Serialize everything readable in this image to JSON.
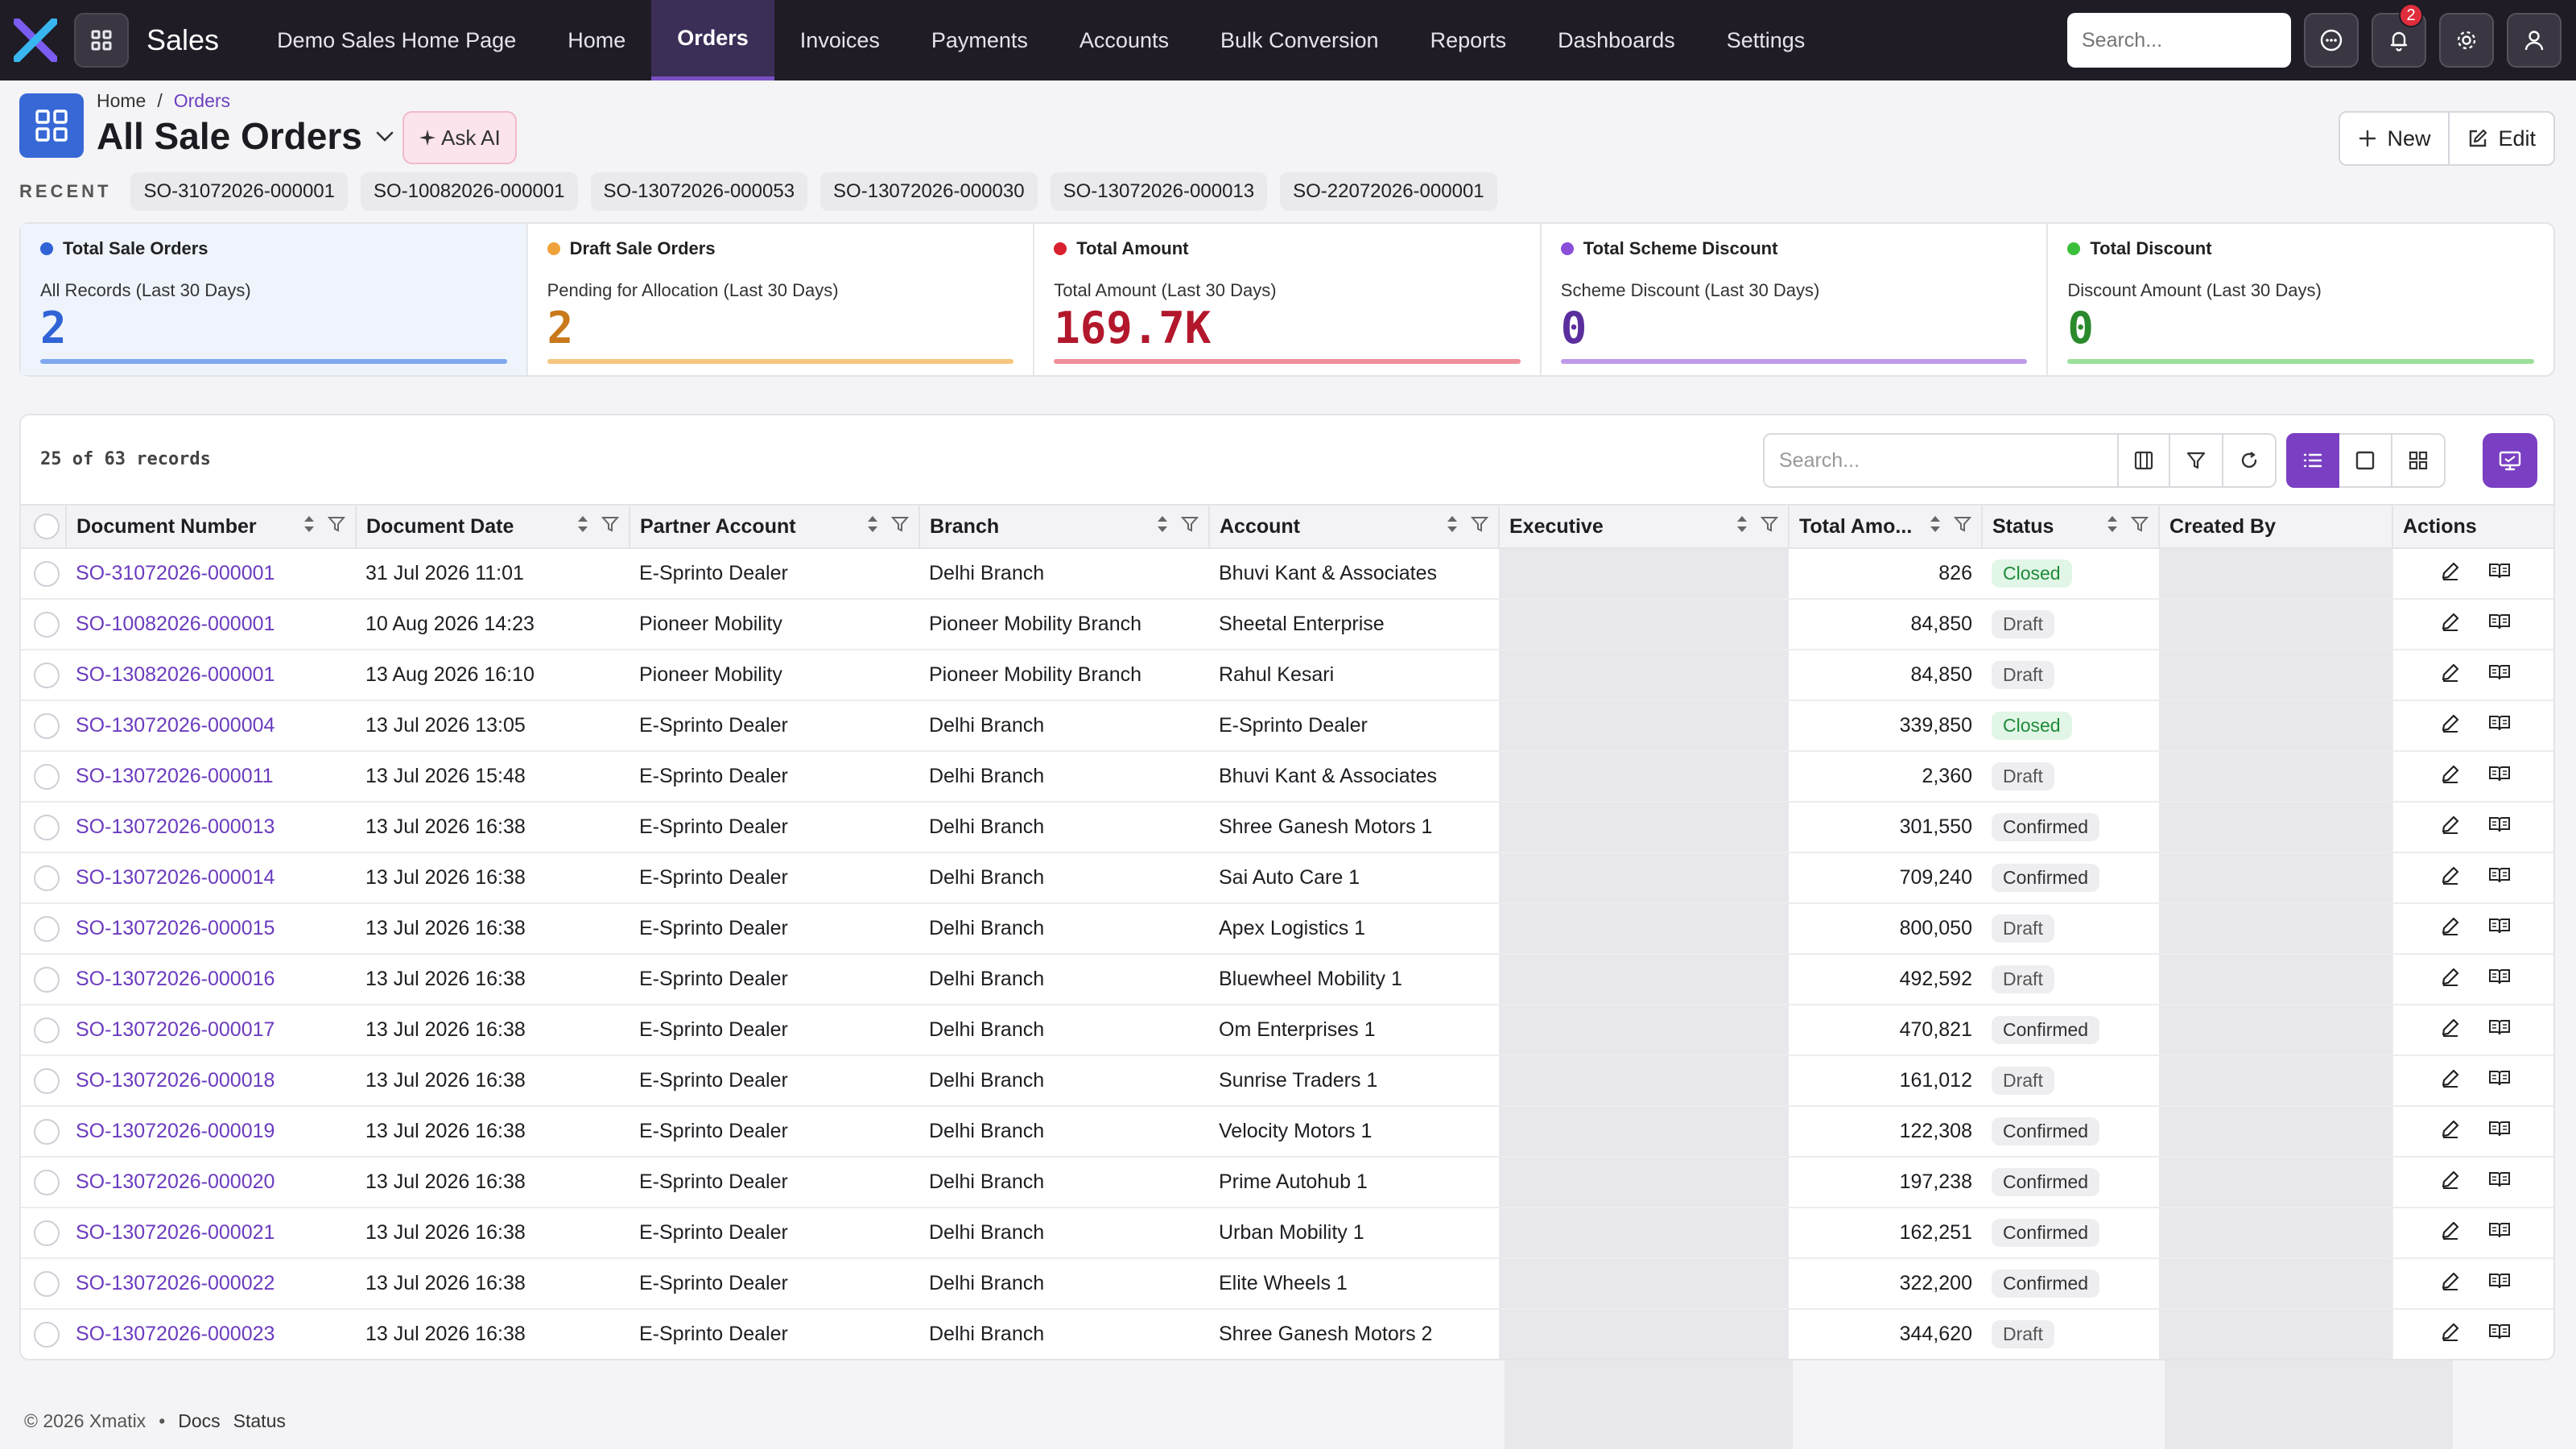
{
  "app": {
    "name": "Sales",
    "accent": "#7a3fc2",
    "nav_bg": "#1f1c26"
  },
  "nav": {
    "items": [
      {
        "label": "Demo Sales Home Page",
        "active": false
      },
      {
        "label": "Home",
        "active": false
      },
      {
        "label": "Orders",
        "active": true
      },
      {
        "label": "Invoices",
        "active": false
      },
      {
        "label": "Payments",
        "active": false
      },
      {
        "label": "Accounts",
        "active": false
      },
      {
        "label": "Bulk Conversion",
        "active": false
      },
      {
        "label": "Reports",
        "active": false
      },
      {
        "label": "Dashboards",
        "active": false
      },
      {
        "label": "Settings",
        "active": false
      }
    ],
    "search_placeholder": "Search...",
    "notification_count": "2"
  },
  "breadcrumb": {
    "home": "Home",
    "sep": "/",
    "current": "Orders"
  },
  "page": {
    "title": "All Sale Orders",
    "ask_ai": "Ask AI",
    "new_label": "New",
    "edit_label": "Edit"
  },
  "recent": {
    "label": "RECENT",
    "items": [
      "SO-31072026-000001",
      "SO-10082026-000001",
      "SO-13072026-000053",
      "SO-13072026-000030",
      "SO-13072026-000013",
      "SO-22072026-000001"
    ]
  },
  "stats": [
    {
      "title": "Total Sale Orders",
      "subtitle": "All Records (Last 30 Days)",
      "value": "2",
      "color": "#2f63d6",
      "dot": "#2f63d6",
      "bar": "#7fa7ee"
    },
    {
      "title": "Draft Sale Orders",
      "subtitle": "Pending for Allocation (Last 30 Days)",
      "value": "2",
      "color": "#c9791b",
      "dot": "#f0a23a",
      "bar": "#f6c47e"
    },
    {
      "title": "Total Amount",
      "subtitle": "Total Amount (Last 30 Days)",
      "value": "169.7K",
      "color": "#b3172b",
      "dot": "#d9202f",
      "bar": "#ee8f99"
    },
    {
      "title": "Total Scheme Discount",
      "subtitle": "Scheme Discount (Last 30 Days)",
      "value": "0",
      "color": "#5b2e9e",
      "dot": "#8a4fd9",
      "bar": "#bf9ae9"
    },
    {
      "title": "Total Discount",
      "subtitle": "Discount Amount (Last 30 Days)",
      "value": "0",
      "color": "#2b8a2b",
      "dot": "#3bbf3b",
      "bar": "#9be09b"
    }
  ],
  "table": {
    "records_text": "25 of 63 records",
    "search_placeholder": "Search...",
    "columns": [
      "Document Number",
      "Document Date",
      "Partner Account",
      "Branch",
      "Account",
      "Executive",
      "Total Amo...",
      "Status",
      "Created By",
      "Actions"
    ],
    "rows": [
      {
        "doc": "SO-31072026-000001",
        "date": "31 Jul 2026 11:01",
        "partner": "E-Sprinto Dealer",
        "branch": "Delhi Branch",
        "account": "Bhuvi Kant & Associates",
        "amount": "826",
        "status": "Closed"
      },
      {
        "doc": "SO-10082026-000001",
        "date": "10 Aug 2026 14:23",
        "partner": "Pioneer Mobility",
        "branch": "Pioneer Mobility Branch",
        "account": "Sheetal Enterprise",
        "amount": "84,850",
        "status": "Draft"
      },
      {
        "doc": "SO-13082026-000001",
        "date": "13 Aug 2026 16:10",
        "partner": "Pioneer Mobility",
        "branch": "Pioneer Mobility Branch",
        "account": "Rahul Kesari",
        "amount": "84,850",
        "status": "Draft"
      },
      {
        "doc": "SO-13072026-000004",
        "date": "13 Jul 2026 13:05",
        "partner": "E-Sprinto Dealer",
        "branch": "Delhi Branch",
        "account": "E-Sprinto Dealer",
        "amount": "339,850",
        "status": "Closed"
      },
      {
        "doc": "SO-13072026-000011",
        "date": "13 Jul 2026 15:48",
        "partner": "E-Sprinto Dealer",
        "branch": "Delhi Branch",
        "account": "Bhuvi Kant & Associates",
        "amount": "2,360",
        "status": "Draft"
      },
      {
        "doc": "SO-13072026-000013",
        "date": "13 Jul 2026 16:38",
        "partner": "E-Sprinto Dealer",
        "branch": "Delhi Branch",
        "account": "Shree Ganesh Motors 1",
        "amount": "301,550",
        "status": "Confirmed"
      },
      {
        "doc": "SO-13072026-000014",
        "date": "13 Jul 2026 16:38",
        "partner": "E-Sprinto Dealer",
        "branch": "Delhi Branch",
        "account": "Sai Auto Care 1",
        "amount": "709,240",
        "status": "Confirmed"
      },
      {
        "doc": "SO-13072026-000015",
        "date": "13 Jul 2026 16:38",
        "partner": "E-Sprinto Dealer",
        "branch": "Delhi Branch",
        "account": "Apex Logistics 1",
        "amount": "800,050",
        "status": "Draft"
      },
      {
        "doc": "SO-13072026-000016",
        "date": "13 Jul 2026 16:38",
        "partner": "E-Sprinto Dealer",
        "branch": "Delhi Branch",
        "account": "Bluewheel Mobility 1",
        "amount": "492,592",
        "status": "Draft"
      },
      {
        "doc": "SO-13072026-000017",
        "date": "13 Jul 2026 16:38",
        "partner": "E-Sprinto Dealer",
        "branch": "Delhi Branch",
        "account": "Om Enterprises 1",
        "amount": "470,821",
        "status": "Confirmed"
      },
      {
        "doc": "SO-13072026-000018",
        "date": "13 Jul 2026 16:38",
        "partner": "E-Sprinto Dealer",
        "branch": "Delhi Branch",
        "account": "Sunrise Traders 1",
        "amount": "161,012",
        "status": "Draft"
      },
      {
        "doc": "SO-13072026-000019",
        "date": "13 Jul 2026 16:38",
        "partner": "E-Sprinto Dealer",
        "branch": "Delhi Branch",
        "account": "Velocity Motors 1",
        "amount": "122,308",
        "status": "Confirmed"
      },
      {
        "doc": "SO-13072026-000020",
        "date": "13 Jul 2026 16:38",
        "partner": "E-Sprinto Dealer",
        "branch": "Delhi Branch",
        "account": "Prime Autohub 1",
        "amount": "197,238",
        "status": "Confirmed"
      },
      {
        "doc": "SO-13072026-000021",
        "date": "13 Jul 2026 16:38",
        "partner": "E-Sprinto Dealer",
        "branch": "Delhi Branch",
        "account": "Urban Mobility 1",
        "amount": "162,251",
        "status": "Confirmed"
      },
      {
        "doc": "SO-13072026-000022",
        "date": "13 Jul 2026 16:38",
        "partner": "E-Sprinto Dealer",
        "branch": "Delhi Branch",
        "account": "Elite Wheels 1",
        "amount": "322,200",
        "status": "Confirmed"
      },
      {
        "doc": "SO-13072026-000023",
        "date": "13 Jul 2026 16:38",
        "partner": "E-Sprinto Dealer",
        "branch": "Delhi Branch",
        "account": "Shree Ganesh Motors 2",
        "amount": "344,620",
        "status": "Draft"
      }
    ]
  },
  "footer": {
    "copyright": "© 2026 Xmatix",
    "bullet": "•",
    "docs": "Docs",
    "status": "Status"
  }
}
